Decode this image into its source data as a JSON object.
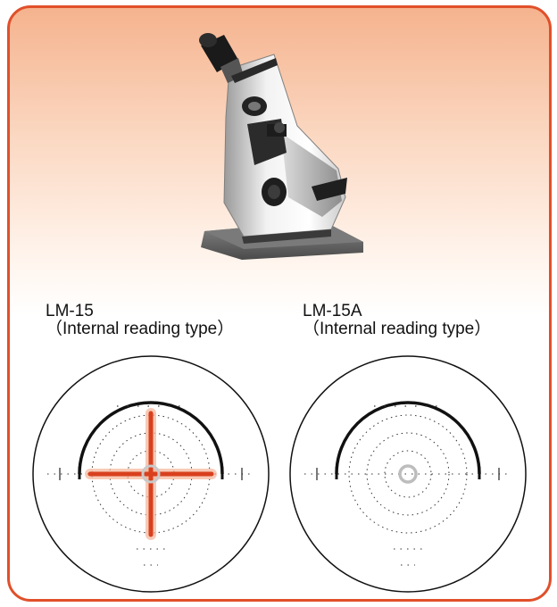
{
  "colors": {
    "border": "#e0502a",
    "gradient_top": "#f5b38e",
    "crosshair": "#d9401e",
    "reticle_line": "#111111"
  },
  "product": {
    "image": "lensmeter-device"
  },
  "models": [
    {
      "name": "LM-15",
      "type": "（Internal reading type）",
      "reticle": "reticle-with-crosshair-icon"
    },
    {
      "name": "LM-15A",
      "type": "（Internal reading type）",
      "reticle": "reticle-with-center-ring-icon"
    }
  ]
}
